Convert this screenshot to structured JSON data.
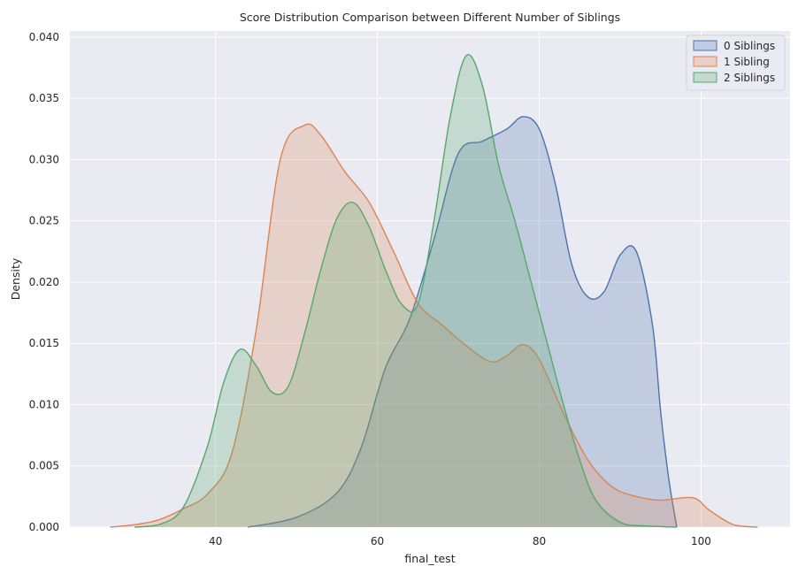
{
  "chart_data": {
    "type": "area",
    "title": "Score Distribution Comparison between Different Number of Siblings",
    "xlabel": "final_test",
    "ylabel": "Density",
    "xlim": [
      22,
      111
    ],
    "ylim": [
      0,
      0.0405
    ],
    "xticks": [
      40,
      60,
      80,
      100
    ],
    "yticks": [
      0.0,
      0.005,
      0.01,
      0.015,
      0.02,
      0.025,
      0.03,
      0.035,
      0.04
    ],
    "ytick_labels": [
      "0.000",
      "0.005",
      "0.010",
      "0.015",
      "0.020",
      "0.025",
      "0.030",
      "0.035",
      "0.040"
    ],
    "grid": true,
    "legend_position": "top-right",
    "background": "#eaeaf2",
    "series": [
      {
        "name": "0 Siblings",
        "color": "#4c72b0",
        "x": [
          44,
          50,
          55,
          58,
          61,
          64,
          67,
          70,
          73,
          76,
          78,
          80,
          82,
          84,
          86,
          88,
          90,
          92,
          94,
          95,
          96,
          97
        ],
        "y": [
          0,
          0.0008,
          0.0028,
          0.0065,
          0.013,
          0.017,
          0.0235,
          0.0305,
          0.0315,
          0.0325,
          0.0335,
          0.0325,
          0.028,
          0.0215,
          0.0188,
          0.0192,
          0.0222,
          0.0225,
          0.0165,
          0.0095,
          0.004,
          0
        ]
      },
      {
        "name": "1 Sibling",
        "color": "#dd8452",
        "x": [
          27,
          30,
          33,
          36,
          39,
          42,
          45,
          48,
          51,
          53,
          56,
          59,
          62,
          65,
          68,
          71,
          74,
          76,
          78,
          80,
          83,
          86,
          89,
          92,
          95,
          99,
          101,
          104,
          107
        ],
        "y": [
          0,
          0.0002,
          0.0006,
          0.0015,
          0.0027,
          0.006,
          0.016,
          0.03,
          0.0328,
          0.032,
          0.029,
          0.0265,
          0.0225,
          0.0183,
          0.0165,
          0.0148,
          0.0135,
          0.014,
          0.0149,
          0.0137,
          0.0093,
          0.0055,
          0.0033,
          0.0025,
          0.0022,
          0.0024,
          0.0014,
          0.0002,
          0
        ]
      },
      {
        "name": "2 Siblings",
        "color": "#55a868",
        "x": [
          30,
          33,
          36,
          39,
          41,
          43,
          45,
          47,
          49,
          51,
          53,
          55,
          57,
          59,
          61,
          63,
          65,
          67,
          69,
          71,
          73,
          75,
          77,
          79,
          81,
          83,
          85,
          87,
          90,
          93,
          97
        ],
        "y": [
          0,
          0.0002,
          0.0016,
          0.0066,
          0.0118,
          0.0145,
          0.0132,
          0.011,
          0.0115,
          0.0158,
          0.021,
          0.0252,
          0.0265,
          0.0245,
          0.021,
          0.0182,
          0.0182,
          0.025,
          0.0335,
          0.0385,
          0.036,
          0.0295,
          0.025,
          0.02,
          0.015,
          0.01,
          0.0055,
          0.0022,
          0.0004,
          0.0001,
          0
        ]
      }
    ]
  }
}
